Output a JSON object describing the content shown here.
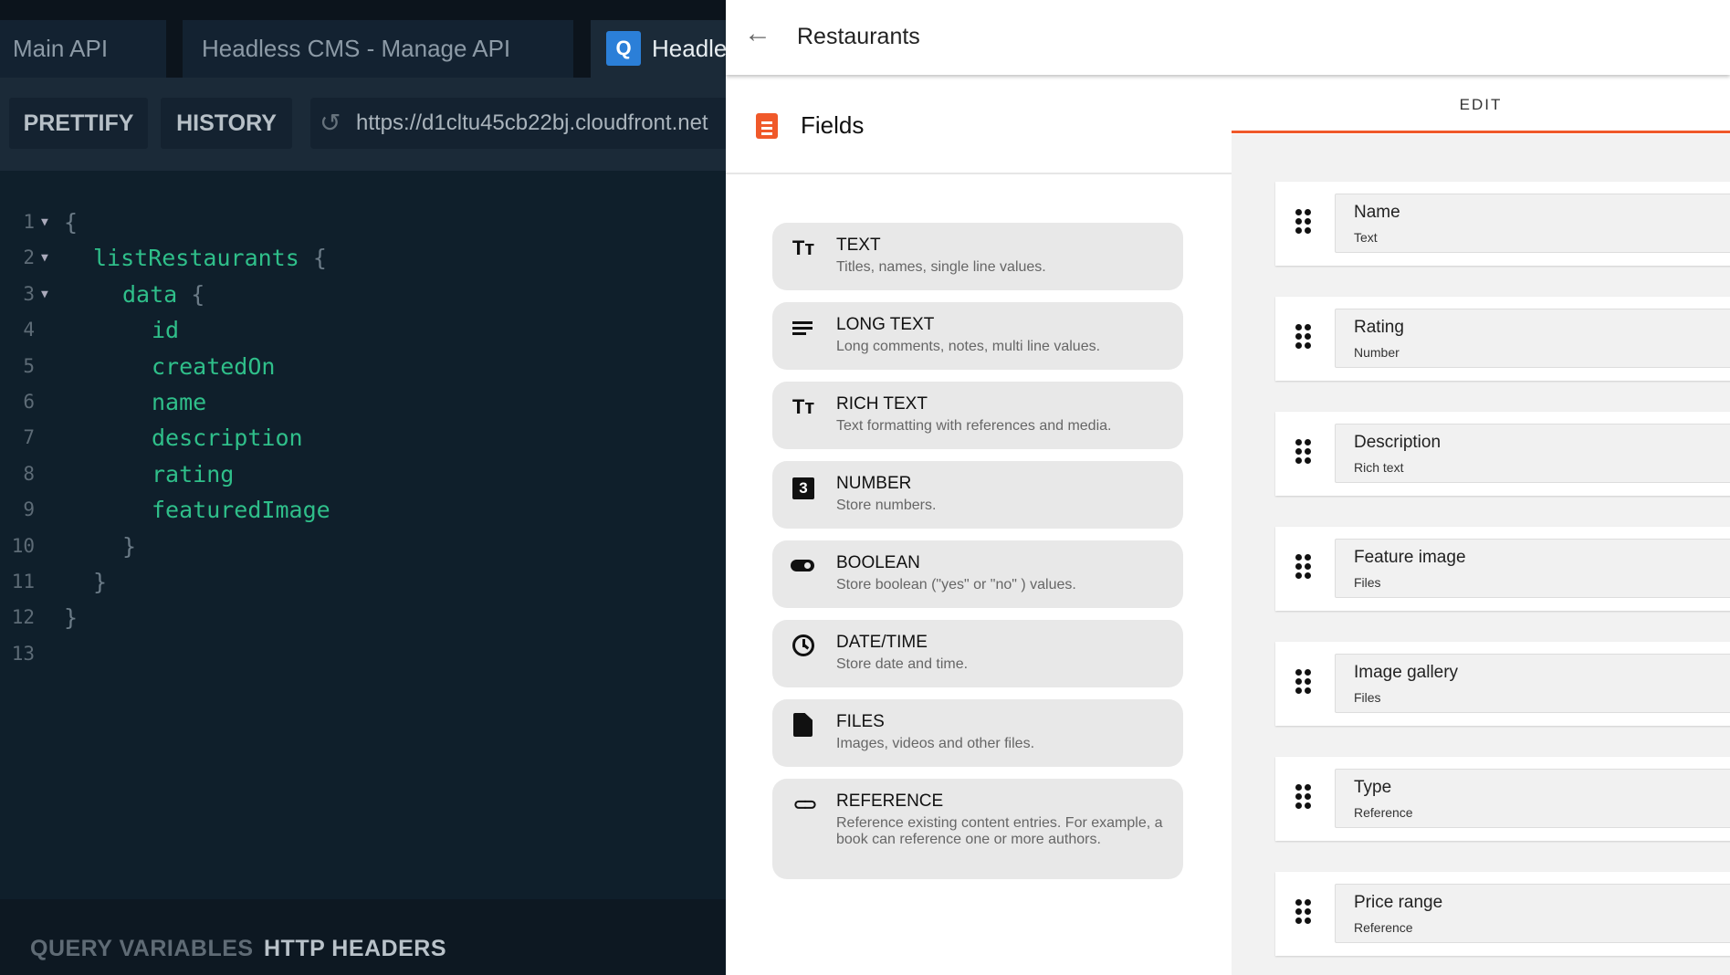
{
  "playground": {
    "tabs": [
      {
        "label": "Main API"
      },
      {
        "label": "Headless CMS - Manage API"
      },
      {
        "label": "Headle",
        "badge": "Q"
      }
    ],
    "toolbar": {
      "prettify": "PRETTIFY",
      "history": "HISTORY",
      "url": "https://d1cltu45cb22bj.cloudfront.net"
    },
    "code_lines": [
      {
        "n": "1",
        "fold": true,
        "indent": 0,
        "key": "",
        "punct": "{"
      },
      {
        "n": "2",
        "fold": true,
        "indent": 1,
        "key": "listRestaurants",
        "punct": " {"
      },
      {
        "n": "3",
        "fold": true,
        "indent": 2,
        "key": "data",
        "punct": " {"
      },
      {
        "n": "4",
        "fold": false,
        "indent": 3,
        "key": "id",
        "punct": ""
      },
      {
        "n": "5",
        "fold": false,
        "indent": 3,
        "key": "createdOn",
        "punct": ""
      },
      {
        "n": "6",
        "fold": false,
        "indent": 3,
        "key": "name",
        "punct": ""
      },
      {
        "n": "7",
        "fold": false,
        "indent": 3,
        "key": "description",
        "punct": ""
      },
      {
        "n": "8",
        "fold": false,
        "indent": 3,
        "key": "rating",
        "punct": ""
      },
      {
        "n": "9",
        "fold": false,
        "indent": 3,
        "key": "featuredImage",
        "punct": ""
      },
      {
        "n": "10",
        "fold": false,
        "indent": 2,
        "key": "",
        "punct": "}"
      },
      {
        "n": "11",
        "fold": false,
        "indent": 1,
        "key": "",
        "punct": "}"
      },
      {
        "n": "12",
        "fold": false,
        "indent": 0,
        "key": "",
        "punct": "}"
      },
      {
        "n": "13",
        "fold": false,
        "indent": 0,
        "key": "",
        "punct": ""
      }
    ],
    "bottom_tabs": {
      "query_variables": "QUERY VARIABLES",
      "http_headers": "HTTP HEADERS"
    }
  },
  "model": {
    "title": "Restaurants",
    "fields_title": "Fields",
    "edit_tab": "EDIT",
    "accent": "#f0592a",
    "field_types": [
      {
        "icon": "text-icon",
        "glyph": "Tт",
        "title": "TEXT",
        "desc": "Titles, names, single line values."
      },
      {
        "icon": "long-text-icon",
        "glyph": "≡",
        "title": "LONG TEXT",
        "desc": "Long comments, notes, multi line values."
      },
      {
        "icon": "rich-text-icon",
        "glyph": "Tт",
        "title": "RICH TEXT",
        "desc": "Text formatting with references and media."
      },
      {
        "icon": "number-icon",
        "glyph": "3",
        "title": "NUMBER",
        "desc": "Store numbers."
      },
      {
        "icon": "toggle-icon",
        "glyph": "",
        "title": "BOOLEAN",
        "desc": "Store boolean (\"yes\" or \"no\" ) values."
      },
      {
        "icon": "clock-icon",
        "glyph": "◷",
        "title": "DATE/TIME",
        "desc": "Store date and time."
      },
      {
        "icon": "file-icon",
        "glyph": "",
        "title": "FILES",
        "desc": "Images, videos and other files."
      },
      {
        "icon": "link-icon",
        "glyph": "⊂⊃",
        "title": "REFERENCE",
        "desc": "Reference existing content entries. For example, a book can reference one or more authors."
      }
    ],
    "fields": [
      {
        "name": "Name",
        "type": "Text"
      },
      {
        "name": "Rating",
        "type": "Number"
      },
      {
        "name": "Description",
        "type": "Rich text"
      },
      {
        "name": "Feature image",
        "type": "Files"
      },
      {
        "name": "Image gallery",
        "type": "Files"
      },
      {
        "name": "Type",
        "type": "Reference"
      },
      {
        "name": "Price range",
        "type": "Reference"
      }
    ]
  }
}
